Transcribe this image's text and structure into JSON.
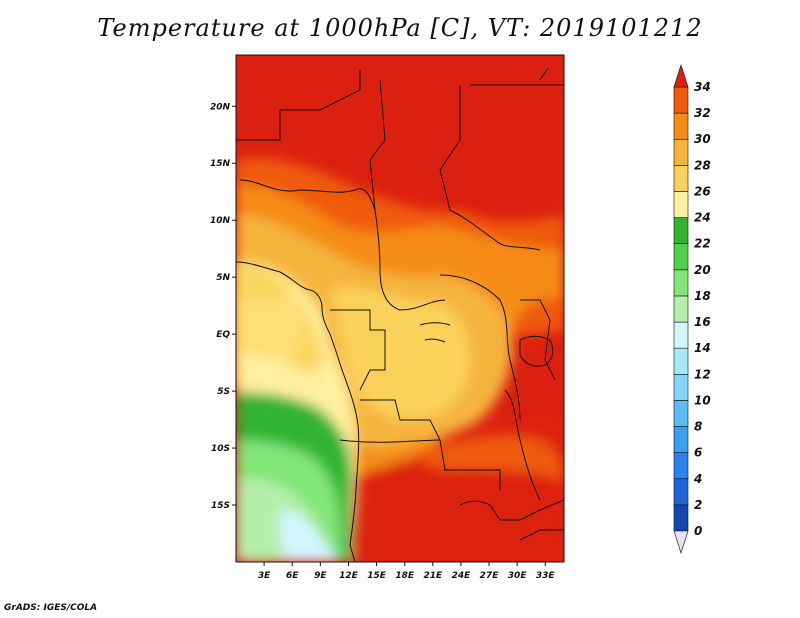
{
  "title": "Temperature at 1000hPa [C], VT: 2019101212",
  "credit": "GrADS: IGES/COLA",
  "lat_ticks": [
    {
      "label": "20N",
      "lat": 20
    },
    {
      "label": "15N",
      "lat": 15
    },
    {
      "label": "10N",
      "lat": 10
    },
    {
      "label": "5N",
      "lat": 5
    },
    {
      "label": "EQ",
      "lat": 0
    },
    {
      "label": "5S",
      "lat": -5
    },
    {
      "label": "10S",
      "lat": -10
    },
    {
      "label": "15S",
      "lat": -15
    }
  ],
  "lon_ticks": [
    {
      "label": "3E",
      "lon": 3
    },
    {
      "label": "6E",
      "lon": 6
    },
    {
      "label": "9E",
      "lon": 9
    },
    {
      "label": "12E",
      "lon": 12
    },
    {
      "label": "15E",
      "lon": 15
    },
    {
      "label": "18E",
      "lon": 18
    },
    {
      "label": "21E",
      "lon": 21
    },
    {
      "label": "24E",
      "lon": 24
    },
    {
      "label": "27E",
      "lon": 27
    },
    {
      "label": "30E",
      "lon": 30
    },
    {
      "label": "33E",
      "lon": 33
    }
  ],
  "extent": {
    "lon_min": 0,
    "lon_max": 35,
    "lat_min": -20,
    "lat_max": 24.5
  },
  "colorbar": {
    "labels": [
      "0",
      "2",
      "4",
      "6",
      "8",
      "10",
      "12",
      "14",
      "16",
      "18",
      "20",
      "22",
      "24",
      "26",
      "28",
      "30",
      "32",
      "34"
    ],
    "colors": [
      "#0a0a70",
      "#1446b4",
      "#1e64dc",
      "#2882f0",
      "#3ca0f0",
      "#5abef5",
      "#82d2fa",
      "#aae6fa",
      "#d2f5ff",
      "#b4f0aa",
      "#82e678",
      "#50d250",
      "#32b432",
      "#fff0a0",
      "#fad25a",
      "#f5b43c",
      "#f58c14",
      "#f05a0a",
      "#dc2010"
    ],
    "bands_in_order_bottom_to_top": "each color band sits between consecutive labels; bottom triangle below 0, top triangle above 34"
  },
  "chart_data": {
    "type": "heatmap",
    "variable": "Temperature at 1000hPa",
    "units": "C",
    "valid_time": "2019101212",
    "x_axis": "longitude (E)",
    "y_axis": "latitude",
    "lon_range": [
      0,
      35
    ],
    "lat_range": [
      -20,
      24.5
    ],
    "contour_levels": [
      0,
      2,
      4,
      6,
      8,
      10,
      12,
      14,
      16,
      18,
      20,
      22,
      24,
      26,
      28,
      30,
      32,
      34
    ],
    "regions": [
      {
        "area": "Sahel / north (lat > 12N)",
        "value_range": [
          32,
          34
        ]
      },
      {
        "area": "interior central Africa (Congo basin)",
        "value_range": [
          26,
          30
        ]
      },
      {
        "area": "Gulf of Guinea ocean",
        "value_range": [
          24,
          26
        ]
      },
      {
        "area": "South Atlantic off Angola (5S-12S)",
        "value_range": [
          20,
          22
        ]
      },
      {
        "area": "South Atlantic (12S-18S)",
        "value_range": [
          16,
          20
        ]
      },
      {
        "area": "South Atlantic coastal (south-west corner)",
        "value_range": [
          14,
          16
        ]
      },
      {
        "area": "Angola / Zambia interior (south)",
        "value_range": [
          32,
          34
        ]
      },
      {
        "area": "East African highlands",
        "value_range": [
          26,
          30
        ]
      }
    ]
  }
}
